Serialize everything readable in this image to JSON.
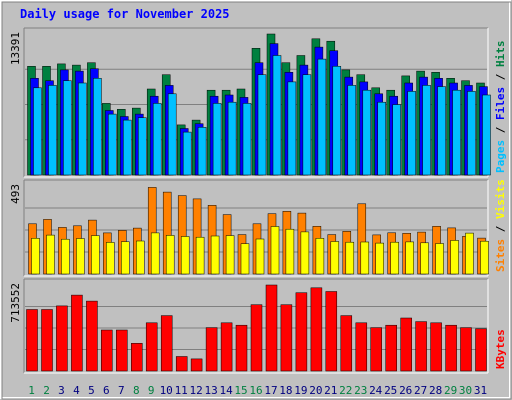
{
  "chart_data": {
    "title": "Daily usage for November 2025",
    "type": "bar",
    "colors": {
      "hits": "#008040",
      "files": "#0000ff",
      "pages": "#00c0ff",
      "visits": "#ff8000",
      "sites": "#ffff00",
      "kbytes": "#ff0000",
      "weekend_label": "#008040",
      "weekday_label": "#000080",
      "title": "#0000ff",
      "background": "#c0c0c0"
    },
    "days": [
      "1",
      "2",
      "3",
      "4",
      "5",
      "6",
      "7",
      "8",
      "9",
      "10",
      "11",
      "12",
      "13",
      "14",
      "15",
      "16",
      "17",
      "18",
      "19",
      "20",
      "21",
      "22",
      "23",
      "24",
      "25",
      "26",
      "27",
      "28",
      "29",
      "30",
      "31"
    ],
    "weekend_days": [
      "1",
      "2",
      "8",
      "9",
      "15",
      "16",
      "22",
      "23",
      "29",
      "30"
    ],
    "panels": [
      {
        "name": "hits-files-pages",
        "scale_label": "13391",
        "max": 13391,
        "side_labels": [
          {
            "text": "Pages",
            "color": "#00c0ff"
          },
          {
            "text": "Files",
            "color": "#0000ff"
          },
          {
            "text": "Hits",
            "color": "#008040"
          }
        ],
        "series": [
          {
            "name": "Hits",
            "color": "#008040",
            "values": [
              10325,
              10325,
              10552,
              10439,
              10666,
              6803,
              6236,
              6349,
              8165,
              9527,
              4760,
              5214,
              8052,
              8052,
              8165,
              12029,
              13391,
              10666,
              11348,
              12936,
              12709,
              9981,
              9527,
              8279,
              8052,
              9413,
              9867,
              9754,
              9186,
              8960,
              8733
            ]
          },
          {
            "name": "Files",
            "color": "#0000ff",
            "values": [
              9186,
              8960,
              9981,
              9867,
              10098,
              6122,
              5554,
              5782,
              7484,
              8506,
              4419,
              4873,
              7484,
              7598,
              7371,
              10666,
              12482,
              9754,
              10439,
              12143,
              11802,
              9300,
              8846,
              7711,
              7484,
              8733,
              9300,
              9186,
              8733,
              8506,
              8392
            ]
          },
          {
            "name": "Pages",
            "color": "#00c0ff",
            "values": [
              8279,
              8506,
              8960,
              8733,
              9186,
              5782,
              5214,
              5441,
              6803,
              7711,
              4078,
              4532,
              6803,
              6917,
              6803,
              9527,
              11348,
              8846,
              9527,
              11007,
              10325,
              8506,
              8052,
              6917,
              6690,
              7938,
              8506,
              8392,
              8052,
              7938,
              7598
            ]
          }
        ]
      },
      {
        "name": "visits-sites",
        "scale_label": "493",
        "max": 493,
        "side_labels": [
          {
            "text": "Sites",
            "color": "#ff8000"
          },
          {
            "text": "Visits",
            "color": "#ffff00"
          }
        ],
        "series": [
          {
            "name": "Visits",
            "color": "#ff8000",
            "values": [
              281,
              306,
              261,
              270,
              302,
              230,
              244,
              257,
              485,
              459,
              439,
              421,
              385,
              333,
              221,
              281,
              338,
              351,
              341,
              267,
              221,
              239,
              393,
              219,
              231,
              228,
              235,
              267,
              258,
              211,
              201
            ]
          },
          {
            "name": "Sites",
            "color": "#ffff00",
            "values": [
              200,
              218,
              195,
              199,
              215,
              177,
              181,
              185,
              230,
              216,
              210,
              206,
              213,
              215,
              170,
              196,
              266,
              251,
              236,
              200,
              182,
              178,
              179,
              173,
              178,
              180,
              175,
              171,
              188,
              229,
              184
            ]
          }
        ]
      },
      {
        "name": "kbytes",
        "scale_label": "713552",
        "max": 713552,
        "side_labels": [
          {
            "text": "KBytes",
            "color": "#ff0000"
          }
        ],
        "series": [
          {
            "name": "KBytes",
            "color": "#ff0000",
            "values": [
              510000,
              510000,
              540000,
              630000,
              580000,
              340000,
              340000,
              230000,
              400000,
              460000,
              120000,
              100000,
              360000,
              400000,
              380000,
              550000,
              713552,
              550000,
              650000,
              690000,
              660000,
              460000,
              400000,
              360000,
              380000,
              440000,
              410000,
              400000,
              380000,
              360000,
              350000
            ]
          }
        ]
      }
    ]
  }
}
